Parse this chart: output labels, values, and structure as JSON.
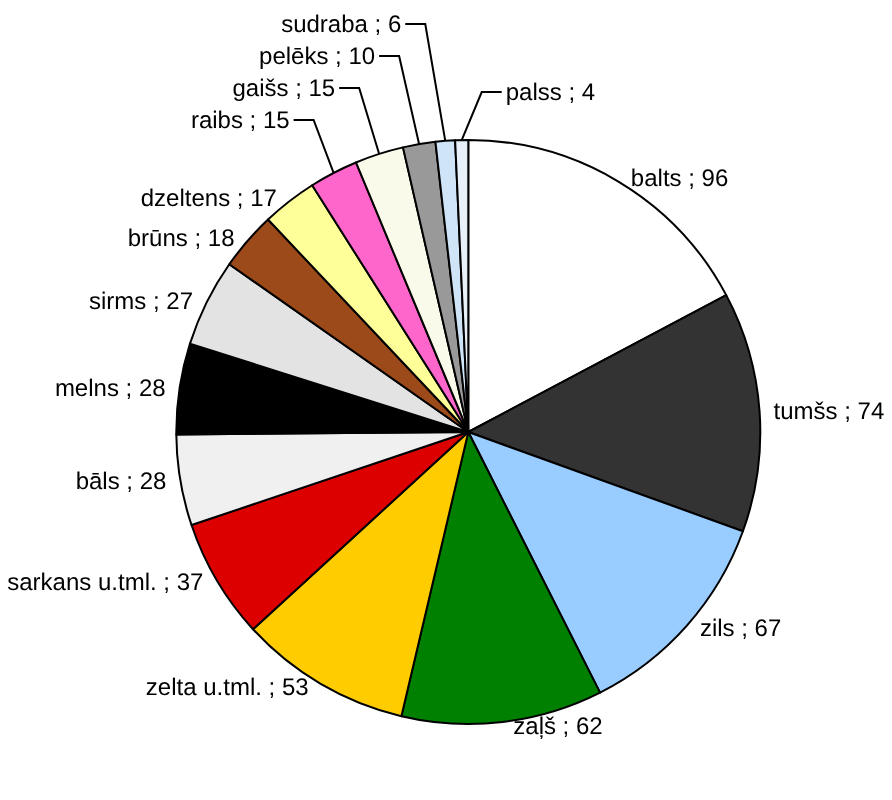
{
  "chart_data": {
    "type": "pie",
    "categories": [
      "balts",
      "tumšs",
      "zils",
      "zaļš",
      "zelta u.tml.",
      "sarkans u.tml.",
      "bāls",
      "melns",
      "sirms",
      "brūns",
      "dzeltens",
      "raibs",
      "gaišs",
      "pelēks",
      "sudraba",
      "palss"
    ],
    "values": [
      96,
      74,
      67,
      62,
      53,
      37,
      28,
      28,
      27,
      18,
      17,
      15,
      15,
      10,
      6,
      4
    ],
    "value_labels": [
      "; 96",
      "; 74",
      "; 67",
      "; 62",
      "; 53",
      "; 37",
      "; 28",
      "; 28",
      "; 27",
      "; 18",
      "; 17",
      "; 15",
      "; 15",
      "; 10",
      "; 6",
      "; 4"
    ],
    "colors": [
      "#ffffff",
      "#333333",
      "#99ccff",
      "#008000",
      "#ffcc00",
      "#dd0000",
      "#f0f0f0",
      "#000000",
      "#e3e3e3",
      "#9c4a1a",
      "#ffff99",
      "#ff66cc",
      "#fafaeb",
      "#999999",
      "#cfe4f7",
      "#e8f0fa"
    ],
    "legend": false
  }
}
